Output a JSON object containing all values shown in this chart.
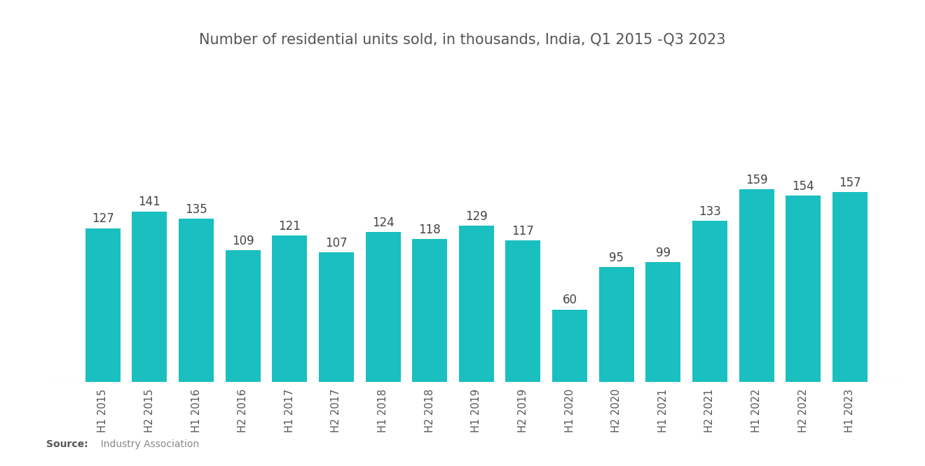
{
  "title": "Number of residential units sold, in thousands, India, Q1 2015 -Q3 2023",
  "categories": [
    "H1 2015",
    "H2 2015",
    "H1 2016",
    "H2 2016",
    "H1 2017",
    "H2 2017",
    "H1 2018",
    "H2 2018",
    "H1 2019",
    "H2 2019",
    "H1 2020",
    "H2 2020",
    "H1 2021",
    "H2 2021",
    "H1 2022",
    "H2 2022",
    "H1 2023"
  ],
  "values": [
    127,
    141,
    135,
    109,
    121,
    107,
    124,
    118,
    129,
    117,
    60,
    95,
    99,
    133,
    159,
    154,
    157
  ],
  "bar_color": "#1ABFBF",
  "background_color": "#ffffff",
  "title_fontsize": 15,
  "label_fontsize": 10.5,
  "value_fontsize": 12,
  "source_bold": "Source:",
  "source_normal": "  Industry Association",
  "ylim": [
    0,
    200
  ]
}
